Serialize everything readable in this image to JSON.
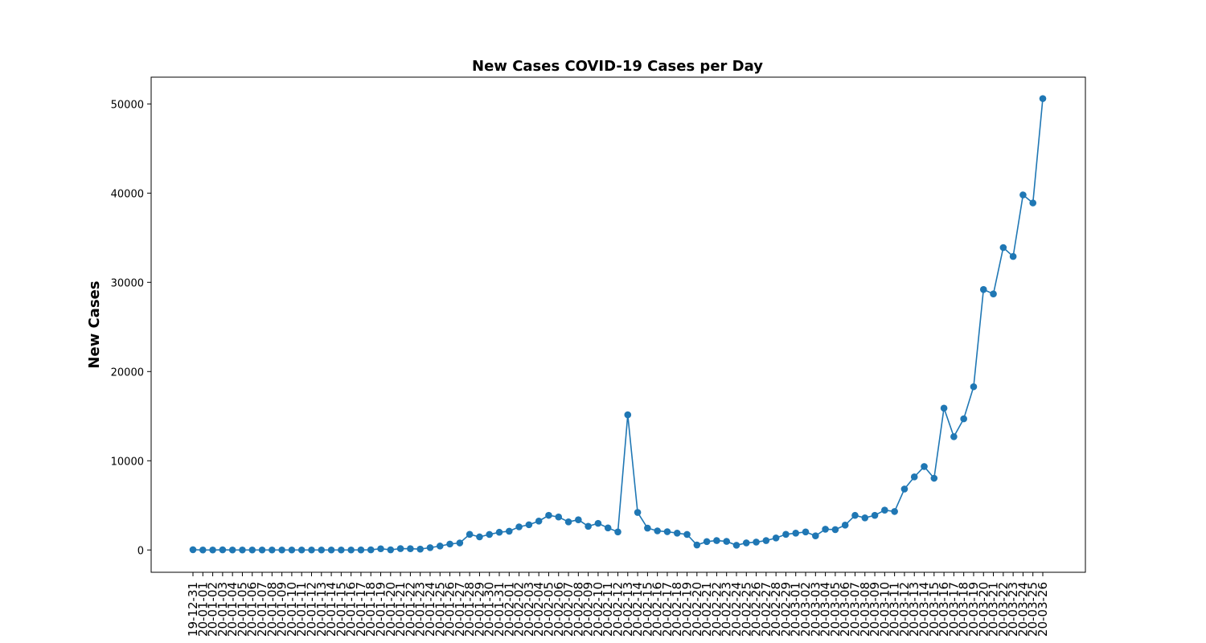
{
  "chart_data": {
    "type": "line",
    "title": "New Cases COVID-19 Cases per Day",
    "xlabel": "",
    "ylabel": "New Cases",
    "ylim": [
      -2500,
      53000
    ],
    "yticks": [
      0,
      10000,
      20000,
      30000,
      40000,
      50000
    ],
    "grid": false,
    "color": "#1f77b4",
    "x": [
      "19-12-31",
      "20-01-01",
      "20-01-02",
      "20-01-03",
      "20-01-04",
      "20-01-05",
      "20-01-06",
      "20-01-07",
      "20-01-08",
      "20-01-09",
      "20-01-10",
      "20-01-11",
      "20-01-12",
      "20-01-13",
      "20-01-14",
      "20-01-15",
      "20-01-16",
      "20-01-17",
      "20-01-18",
      "20-01-19",
      "20-01-20",
      "20-01-21",
      "20-01-22",
      "20-01-23",
      "20-01-24",
      "20-01-25",
      "20-01-26",
      "20-01-27",
      "20-01-28",
      "20-01-29",
      "20-01-30",
      "20-01-31",
      "20-02-01",
      "20-02-02",
      "20-02-03",
      "20-02-04",
      "20-02-05",
      "20-02-06",
      "20-02-07",
      "20-02-08",
      "20-02-09",
      "20-02-10",
      "20-02-11",
      "20-02-12",
      "20-02-13",
      "20-02-14",
      "20-02-15",
      "20-02-16",
      "20-02-17",
      "20-02-18",
      "20-02-19",
      "20-02-20",
      "20-02-21",
      "20-02-22",
      "20-02-23",
      "20-02-24",
      "20-02-25",
      "20-02-26",
      "20-02-27",
      "20-02-28",
      "20-02-29",
      "20-03-01",
      "20-03-02",
      "20-03-03",
      "20-03-04",
      "20-03-05",
      "20-03-06",
      "20-03-07",
      "20-03-08",
      "20-03-09",
      "20-03-10",
      "20-03-11",
      "20-03-12",
      "20-03-13",
      "20-03-14",
      "20-03-15",
      "20-03-16",
      "20-03-17",
      "20-03-18",
      "20-03-19",
      "20-03-20",
      "20-03-21",
      "20-03-22",
      "20-03-23",
      "20-03-24",
      "20-03-25",
      "20-03-26"
    ],
    "xtick_labels": [
      "19-12-31",
      "20-01-01",
      "20-01-02",
      "20-01-03",
      "20-01-04",
      "20-01-05",
      "20-01-06",
      "20-01-07",
      "20-01-08",
      "20-01-09",
      "20-01-10",
      "20-01-11",
      "20-01-12",
      "20-01-13",
      "20-01-14",
      "20-01-15",
      "20-01-16",
      "20-01-17",
      "20-01-18",
      "20-01-19",
      "20-01-20",
      "20-01-21",
      "20-01-22",
      "20-01-23",
      "20-01-24",
      "20-01-25",
      "20-01-26",
      "20-01-27",
      "20-01-28",
      "20-01-29",
      "20-01-30",
      "20-01-31",
      "20-02-01",
      "20-02-02",
      "20-02-03",
      "20-02-04",
      "20-02-05",
      "20-02-06",
      "20-02-07",
      "20-02-08",
      "20-02-09",
      "20-02-10",
      "20-02-11",
      "20-02-12",
      "20-02-13",
      "20-02-14",
      "20-02-15",
      "20-02-16",
      "20-02-17",
      "20-02-18",
      "20-02-19",
      "20-02-20",
      "20-02-21",
      "20-02-22",
      "20-02-23",
      "20-02-24",
      "20-02-25",
      "20-02-26",
      "20-02-27",
      "20-02-28",
      "20-02-29",
      "20-03-01",
      "20-03-02",
      "20-03-03",
      "20-03-04",
      "20-03-05",
      "20-03-06",
      "20-03-07",
      "20-03-08",
      "20-03-09",
      "20-03-10",
      "20-03-11",
      "20-03-12",
      "20-03-13",
      "20-03-14",
      "20-03-15",
      "20-03-16",
      "20-03-17",
      "20-03-18",
      "20-03-19",
      "20-03-20",
      "20-03-21",
      "20-03-22",
      "20-03-23",
      "20-03-24",
      "20-03-25",
      "20-03-26"
    ],
    "values": [
      27,
      0,
      0,
      17,
      0,
      0,
      0,
      0,
      0,
      0,
      0,
      0,
      0,
      0,
      0,
      0,
      0,
      4,
      17,
      136,
      19,
      151,
      140,
      97,
      259,
      441,
      665,
      787,
      1753,
      1466,
      1739,
      1984,
      2101,
      2590,
      2827,
      3235,
      3884,
      3697,
      3151,
      3387,
      2653,
      2984,
      2473,
      2022,
      15152,
      4207,
      2452,
      2141,
      2048,
      1888,
      1739,
      559,
      939,
      1051,
      961,
      530,
      795,
      884,
      1054,
      1344,
      1752,
      1884,
      2022,
      1584,
      2327,
      2284,
      2786,
      3876,
      3597,
      3881,
      4466,
      4312,
      6834,
      8190,
      9353,
      8040,
      15900,
      12700,
      14700,
      18300,
      29200,
      28700,
      33900,
      32900,
      39800,
      38900,
      50600
    ]
  }
}
